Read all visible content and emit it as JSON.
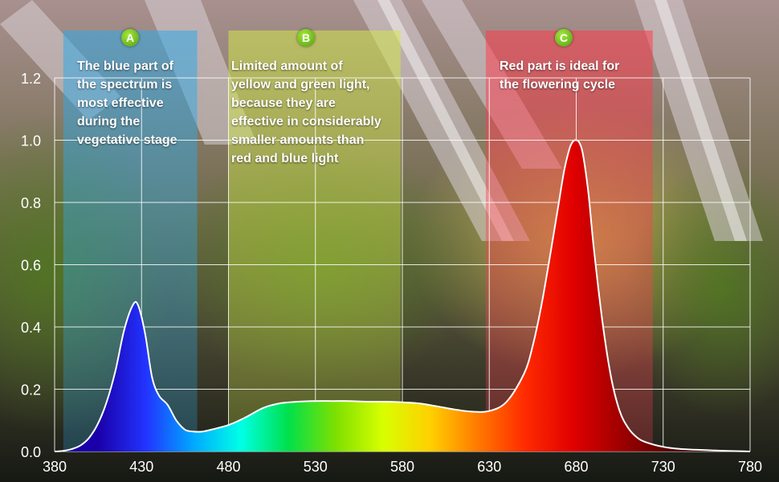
{
  "chart_data": {
    "type": "area",
    "title": "",
    "xlabel": "",
    "ylabel": "",
    "xlim": [
      380,
      780
    ],
    "ylim": [
      0,
      1.2
    ],
    "x_ticks": [
      "380",
      "430",
      "480",
      "530",
      "580",
      "630",
      "680",
      "730",
      "780"
    ],
    "y_ticks": [
      "0.0",
      "0.2",
      "0.4",
      "0.6",
      "0.8",
      "1.0",
      "1.2"
    ],
    "grid": true,
    "x": [
      380,
      385,
      390,
      395,
      400,
      405,
      410,
      415,
      420,
      425,
      428,
      432,
      436,
      440,
      445,
      450,
      455,
      460,
      465,
      470,
      480,
      490,
      500,
      510,
      520,
      530,
      540,
      550,
      560,
      570,
      580,
      590,
      600,
      610,
      620,
      630,
      640,
      650,
      655,
      660,
      665,
      670,
      673,
      676,
      678,
      680,
      682,
      684,
      687,
      690,
      695,
      700,
      705,
      710,
      715,
      720,
      730,
      740,
      760,
      780
    ],
    "values": [
      0.0,
      0.002,
      0.008,
      0.02,
      0.045,
      0.09,
      0.16,
      0.26,
      0.39,
      0.47,
      0.47,
      0.38,
      0.24,
      0.18,
      0.15,
      0.1,
      0.07,
      0.064,
      0.064,
      0.07,
      0.085,
      0.11,
      0.14,
      0.155,
      0.16,
      0.162,
      0.162,
      0.162,
      0.16,
      0.16,
      0.158,
      0.154,
      0.145,
      0.135,
      0.128,
      0.13,
      0.16,
      0.25,
      0.34,
      0.47,
      0.63,
      0.8,
      0.9,
      0.97,
      0.995,
      1.0,
      0.99,
      0.95,
      0.83,
      0.66,
      0.42,
      0.24,
      0.13,
      0.075,
      0.045,
      0.03,
      0.015,
      0.008,
      0.003,
      0.0
    ],
    "colors": {
      "line": "#ffffff",
      "grid": "#ffffff",
      "spectrum": [
        "#1a00a8",
        "#2233ff",
        "#00a8ff",
        "#00ffe6",
        "#00e04c",
        "#7ee000",
        "#d8ff00",
        "#ffd000",
        "#ff7a00",
        "#ff2a00",
        "#e00000",
        "#a00000",
        "#5a0000",
        "#2a0000"
      ]
    },
    "regions": [
      {
        "id": "A",
        "range": [
          385,
          462
        ],
        "color": "#2fa9e8",
        "text": "The blue part of the spectrum is most effective during the vegetative stage",
        "lines": [
          "The blue part of",
          "the spectrum is",
          "most effective",
          "during the",
          "vegetative stage"
        ]
      },
      {
        "id": "B",
        "range": [
          480,
          579
        ],
        "color": "#cfe64a",
        "text": "Limited amount of yellow and green light, because they are effective in considerably smaller amounts than red and blue light",
        "lines": [
          "Limited amount of",
          "yellow and green light,",
          "because they are",
          "effective in considerably",
          "smaller amounts than",
          "red and blue light"
        ]
      },
      {
        "id": "C",
        "range": [
          628,
          724
        ],
        "color": "#ff3b4e",
        "text": "Red part is ideal for the flowering cycle",
        "lines": [
          "Red part is ideal for",
          "the flowering cycle"
        ]
      }
    ]
  }
}
